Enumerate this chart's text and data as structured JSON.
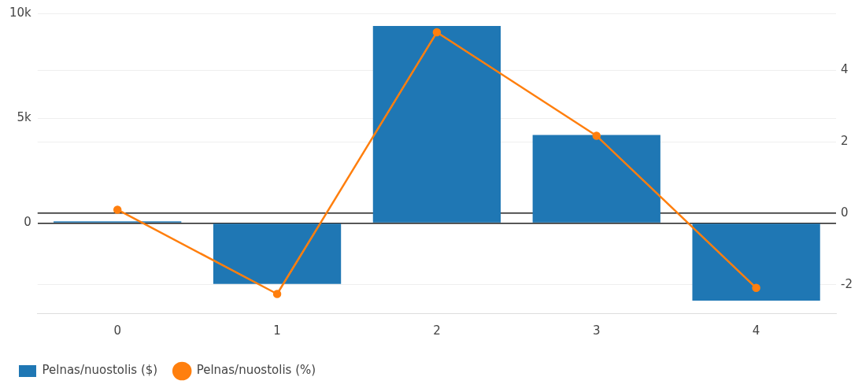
{
  "chart_data": {
    "type": "bar",
    "categories": [
      "0",
      "1",
      "2",
      "3",
      "4"
    ],
    "series": [
      {
        "name": "Pelnas/nuostolis ($)",
        "color": "#1f77b4",
        "values": [
          80,
          -2900,
          9400,
          4200,
          -3700
        ]
      },
      {
        "name": "Pelnas/nuostolis (%)",
        "type": "line",
        "axis": "y2",
        "color": "#ff7f0e",
        "values": [
          0.1,
          -2.26,
          5.07,
          2.17,
          -2.09
        ]
      }
    ],
    "ylim": [
      -4300,
      10000
    ],
    "yticks": [
      0,
      {
        "value": 5000,
        "label": "5k"
      },
      {
        "value": 10000,
        "label": "10k"
      }
    ],
    "y2lim": [
      -2.8,
      5.6
    ],
    "y2ticks": [
      -2,
      0,
      2,
      4
    ],
    "grid": true,
    "legend": "bottom left",
    "marker": "circle",
    "line_style": "solid"
  }
}
